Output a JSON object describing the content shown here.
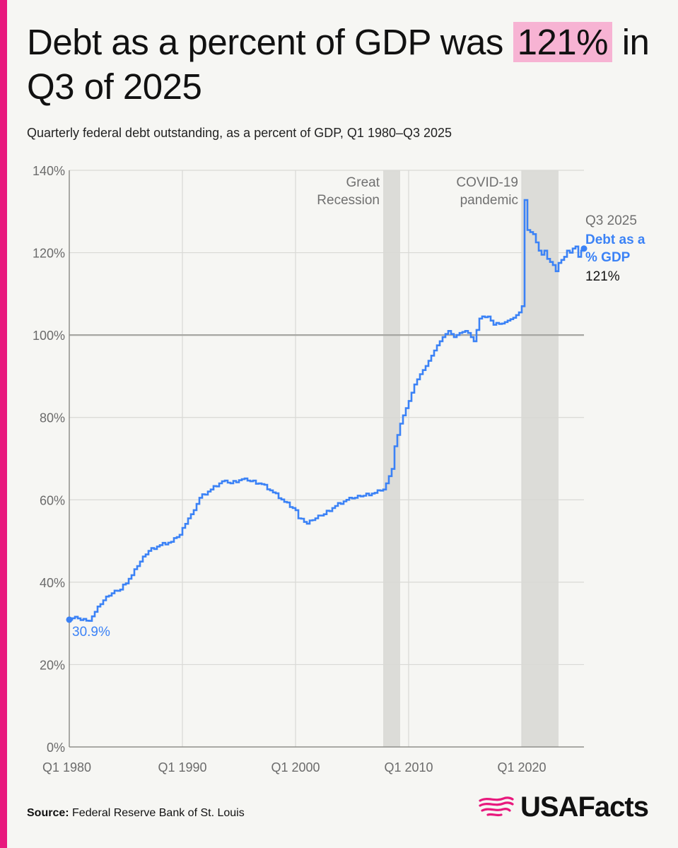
{
  "title": {
    "prefix": "Debt as a percent of GDP was ",
    "highlight": "121%",
    "suffix": " in Q3 of 2025"
  },
  "subtitle": "Quarterly federal debt outstanding, as a percent of GDP, Q1 1980–Q3 2025",
  "source": {
    "label": "Source:",
    "text": "Federal Reserve Bank of St. Louis"
  },
  "logo": {
    "text": "USAFacts"
  },
  "colors": {
    "accent": "#e8197d",
    "highlight": "#f7b3d3",
    "line": "#3b82f6",
    "shade": "#dcdcd8"
  },
  "chart_data": {
    "type": "line",
    "title": "Debt as a percent of GDP was 121% in Q3 of 2025",
    "xlabel": "",
    "ylabel": "",
    "ylim": [
      0,
      140
    ],
    "xlim": [
      1980.0,
      2025.5
    ],
    "y_ticks": [
      0,
      20,
      40,
      60,
      80,
      100,
      120,
      140
    ],
    "y_tick_labels": [
      "0%",
      "20%",
      "40%",
      "60%",
      "80%",
      "100%",
      "120%",
      "140%"
    ],
    "x_ticks": [
      1980,
      1990,
      2000,
      2010,
      2020
    ],
    "x_tick_labels": [
      "Q1 1980",
      "Q1 1990",
      "Q1 2000",
      "Q1 2010",
      "Q1 2020"
    ],
    "reference_line": 100,
    "shaded_periods": [
      {
        "label_lines": [
          "Great",
          "Recession"
        ],
        "start": 2007.75,
        "end": 2009.25
      },
      {
        "label_lines": [
          "COVID-19",
          "pandemic"
        ],
        "start": 2020.0,
        "end": 2023.25
      }
    ],
    "start_label": "30.9%",
    "end_annotation": {
      "period": "Q3 2025",
      "series_lines": [
        "Debt as a",
        "% GDP"
      ],
      "value_label": "121%"
    },
    "series": [
      {
        "name": "Debt as a % GDP",
        "anchors": [
          [
            1980.0,
            30.9
          ],
          [
            1980.5,
            31.6
          ],
          [
            1981.0,
            30.8
          ],
          [
            1981.75,
            30.6
          ],
          [
            1982.25,
            32.8
          ],
          [
            1983.0,
            35.6
          ],
          [
            1983.75,
            37.3
          ],
          [
            1984.5,
            38.2
          ],
          [
            1985.5,
            41.7
          ],
          [
            1986.25,
            45.0
          ],
          [
            1987.0,
            47.6
          ],
          [
            1988.0,
            49.0
          ],
          [
            1989.0,
            49.8
          ],
          [
            1989.75,
            51.5
          ],
          [
            1990.5,
            55.5
          ],
          [
            1991.0,
            57.5
          ],
          [
            1991.5,
            60.5
          ],
          [
            1992.5,
            62.5
          ],
          [
            1993.5,
            64.5
          ],
          [
            1994.25,
            64.0
          ],
          [
            1995.25,
            65.0
          ],
          [
            1996.0,
            64.5
          ],
          [
            1997.0,
            63.8
          ],
          [
            1998.0,
            61.8
          ],
          [
            1999.0,
            59.5
          ],
          [
            2000.0,
            57.5
          ],
          [
            2000.25,
            55.5
          ],
          [
            2001.0,
            54.2
          ],
          [
            2001.75,
            55.5
          ],
          [
            2002.5,
            56.5
          ],
          [
            2003.5,
            58.5
          ],
          [
            2004.5,
            60.0
          ],
          [
            2005.25,
            60.5
          ],
          [
            2006.0,
            61.0
          ],
          [
            2007.0,
            61.7
          ],
          [
            2007.75,
            62.5
          ],
          [
            2008.0,
            64.0
          ],
          [
            2008.5,
            67.5
          ],
          [
            2008.75,
            73.0
          ],
          [
            2009.25,
            78.5
          ],
          [
            2009.5,
            80.5
          ],
          [
            2010.0,
            84.0
          ],
          [
            2010.5,
            88.0
          ],
          [
            2011.0,
            90.5
          ],
          [
            2011.5,
            92.5
          ],
          [
            2012.0,
            95.0
          ],
          [
            2012.5,
            97.5
          ],
          [
            2013.0,
            99.5
          ],
          [
            2013.5,
            101.0
          ],
          [
            2014.0,
            99.5
          ],
          [
            2014.5,
            100.5
          ],
          [
            2015.0,
            101.0
          ],
          [
            2015.25,
            100.5
          ],
          [
            2015.75,
            98.5
          ],
          [
            2016.25,
            104.0
          ],
          [
            2017.0,
            104.5
          ],
          [
            2017.5,
            102.5
          ],
          [
            2018.25,
            102.8
          ],
          [
            2018.75,
            103.5
          ],
          [
            2019.25,
            104.2
          ],
          [
            2019.75,
            105.5
          ],
          [
            2020.0,
            107.0
          ],
          [
            2020.25,
            132.8
          ],
          [
            2020.5,
            125.5
          ],
          [
            2021.0,
            124.5
          ],
          [
            2021.5,
            120.5
          ],
          [
            2021.75,
            119.5
          ],
          [
            2022.0,
            120.5
          ],
          [
            2022.25,
            118.5
          ],
          [
            2022.75,
            117.0
          ],
          [
            2023.0,
            115.5
          ],
          [
            2023.25,
            117.5
          ],
          [
            2023.75,
            119.0
          ],
          [
            2024.0,
            120.5
          ],
          [
            2024.25,
            120.0
          ],
          [
            2024.5,
            121.0
          ],
          [
            2024.75,
            121.5
          ],
          [
            2025.0,
            119.0
          ],
          [
            2025.25,
            120.5
          ],
          [
            2025.5,
            121.0
          ]
        ]
      }
    ]
  }
}
